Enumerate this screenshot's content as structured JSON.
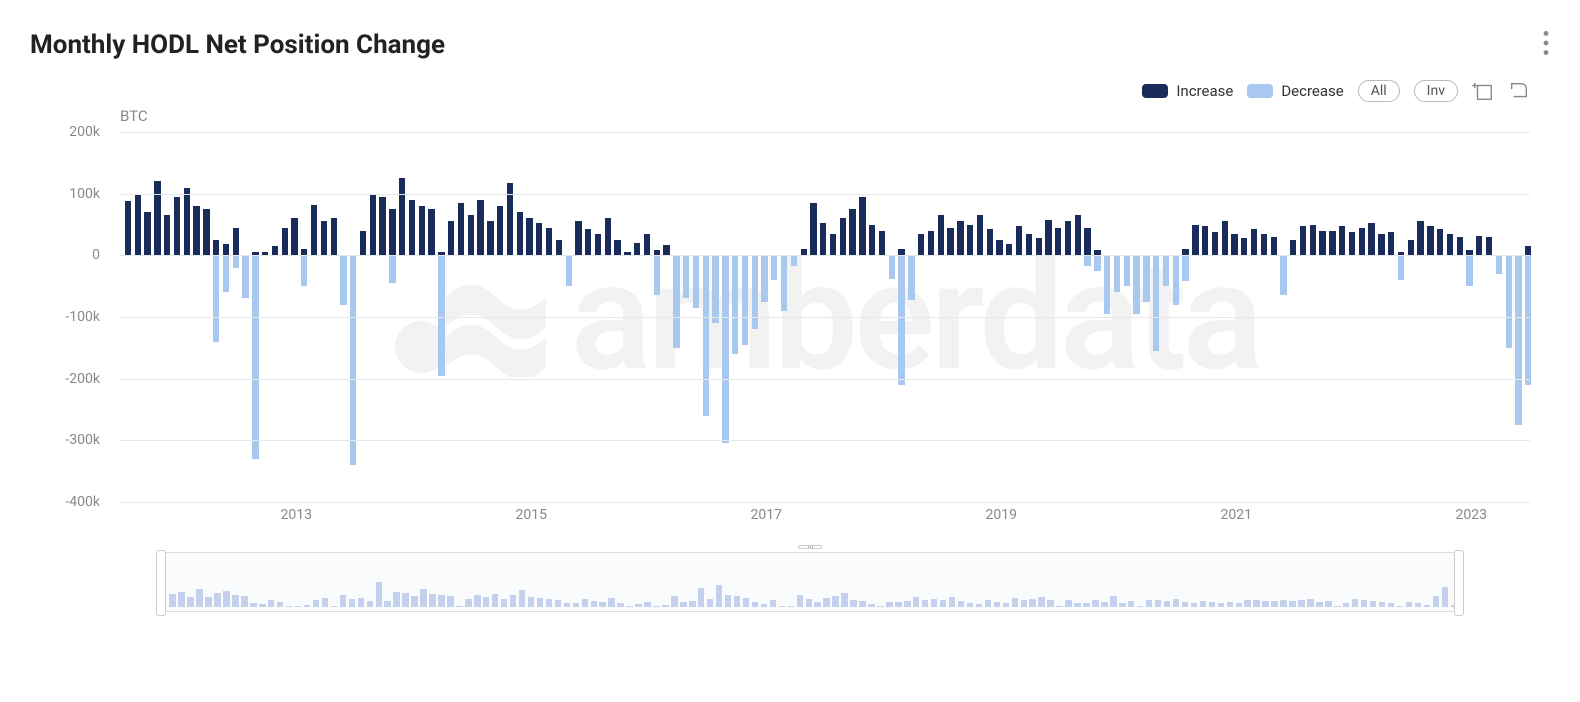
{
  "title": "Monthly HODL Net Position Change",
  "legend": {
    "increase": {
      "label": "Increase",
      "color": "#1a2c5b"
    },
    "decrease": {
      "label": "Decrease",
      "color": "#a8c8ef"
    }
  },
  "controls": {
    "all": "All",
    "inv": "Inv"
  },
  "watermark": "amberdata",
  "chart": {
    "type": "bar",
    "y_unit": "BTC",
    "ylim_min": -400000,
    "ylim_max": 200000,
    "ytick_step": 100000,
    "y_ticks": [
      {
        "v": 200000,
        "label": "200k"
      },
      {
        "v": 100000,
        "label": "100k"
      },
      {
        "v": 0,
        "label": "0"
      },
      {
        "v": -100000,
        "label": "-100k"
      },
      {
        "v": -200000,
        "label": "-200k"
      },
      {
        "v": -300000,
        "label": "-300k"
      },
      {
        "v": -400000,
        "label": "-400k"
      }
    ],
    "x_ticks": [
      "2013",
      "2015",
      "2017",
      "2019",
      "2021",
      "2023"
    ],
    "bar_width_pct": 0.45,
    "grid_color": "#e8e8e8",
    "background_color": "#ffffff",
    "increase_color": "#1a2c5b",
    "decrease_color": "#a8c8ef",
    "data": [
      {
        "i": 88,
        "d": 0
      },
      {
        "i": 100,
        "d": 0
      },
      {
        "i": 70,
        "d": 0
      },
      {
        "i": 120,
        "d": 0
      },
      {
        "i": 65,
        "d": 0
      },
      {
        "i": 95,
        "d": 0
      },
      {
        "i": 110,
        "d": 0
      },
      {
        "i": 80,
        "d": 0
      },
      {
        "i": 75,
        "d": 0
      },
      {
        "i": 25,
        "d": -140
      },
      {
        "i": 18,
        "d": -60
      },
      {
        "i": 45,
        "d": -20
      },
      {
        "i": 0,
        "d": -70
      },
      {
        "i": 5,
        "d": -330
      },
      {
        "i": 5,
        "d": 0
      },
      {
        "i": 15,
        "d": 0
      },
      {
        "i": 45,
        "d": 0
      },
      {
        "i": 60,
        "d": 0
      },
      {
        "i": 10,
        "d": -50
      },
      {
        "i": 82,
        "d": 0
      },
      {
        "i": 55,
        "d": 0
      },
      {
        "i": 60,
        "d": 0
      },
      {
        "i": 0,
        "d": -80
      },
      {
        "i": 0,
        "d": -340
      },
      {
        "i": 40,
        "d": 0
      },
      {
        "i": 100,
        "d": 0
      },
      {
        "i": 95,
        "d": 0
      },
      {
        "i": 75,
        "d": -45
      },
      {
        "i": 125,
        "d": 0
      },
      {
        "i": 90,
        "d": 0
      },
      {
        "i": 80,
        "d": 0
      },
      {
        "i": 75,
        "d": 0
      },
      {
        "i": 5,
        "d": -195
      },
      {
        "i": 55,
        "d": 0
      },
      {
        "i": 85,
        "d": 0
      },
      {
        "i": 65,
        "d": 0
      },
      {
        "i": 90,
        "d": 0
      },
      {
        "i": 55,
        "d": 0
      },
      {
        "i": 80,
        "d": 0
      },
      {
        "i": 118,
        "d": 0
      },
      {
        "i": 70,
        "d": 0
      },
      {
        "i": 60,
        "d": 0
      },
      {
        "i": 52,
        "d": 0
      },
      {
        "i": 45,
        "d": 0
      },
      {
        "i": 25,
        "d": 0
      },
      {
        "i": 0,
        "d": -50
      },
      {
        "i": 55,
        "d": 0
      },
      {
        "i": 42,
        "d": 0
      },
      {
        "i": 35,
        "d": 0
      },
      {
        "i": 60,
        "d": 0
      },
      {
        "i": 25,
        "d": 0
      },
      {
        "i": 5,
        "d": 0
      },
      {
        "i": 20,
        "d": 0
      },
      {
        "i": 35,
        "d": 0
      },
      {
        "i": 8,
        "d": -65
      },
      {
        "i": 16,
        "d": 0
      },
      {
        "i": 0,
        "d": -150
      },
      {
        "i": 0,
        "d": -70
      },
      {
        "i": 0,
        "d": -85
      },
      {
        "i": 0,
        "d": -260
      },
      {
        "i": 0,
        "d": -110
      },
      {
        "i": 0,
        "d": -305
      },
      {
        "i": 0,
        "d": -160
      },
      {
        "i": 0,
        "d": -145
      },
      {
        "i": 0,
        "d": -120
      },
      {
        "i": 0,
        "d": -75
      },
      {
        "i": 0,
        "d": -40
      },
      {
        "i": 0,
        "d": -90
      },
      {
        "i": 0,
        "d": -18
      },
      {
        "i": 10,
        "d": 0
      },
      {
        "i": 85,
        "d": 0
      },
      {
        "i": 52,
        "d": 0
      },
      {
        "i": 35,
        "d": 0
      },
      {
        "i": 60,
        "d": 0
      },
      {
        "i": 75,
        "d": 0
      },
      {
        "i": 95,
        "d": 0
      },
      {
        "i": 50,
        "d": 0
      },
      {
        "i": 40,
        "d": 0
      },
      {
        "i": 0,
        "d": -38
      },
      {
        "i": 10,
        "d": -210
      },
      {
        "i": 0,
        "d": -72
      },
      {
        "i": 35,
        "d": 0
      },
      {
        "i": 40,
        "d": 0
      },
      {
        "i": 65,
        "d": 0
      },
      {
        "i": 45,
        "d": 0
      },
      {
        "i": 55,
        "d": 0
      },
      {
        "i": 50,
        "d": 0
      },
      {
        "i": 65,
        "d": 0
      },
      {
        "i": 42,
        "d": 0
      },
      {
        "i": 25,
        "d": 0
      },
      {
        "i": 18,
        "d": 0
      },
      {
        "i": 48,
        "d": 0
      },
      {
        "i": 35,
        "d": 0
      },
      {
        "i": 28,
        "d": 0
      },
      {
        "i": 58,
        "d": 0
      },
      {
        "i": 45,
        "d": 0
      },
      {
        "i": 55,
        "d": 0
      },
      {
        "i": 65,
        "d": 0
      },
      {
        "i": 45,
        "d": -18
      },
      {
        "i": 8,
        "d": -25
      },
      {
        "i": 0,
        "d": -95
      },
      {
        "i": 0,
        "d": -60
      },
      {
        "i": 0,
        "d": -50
      },
      {
        "i": 0,
        "d": -95
      },
      {
        "i": 0,
        "d": -75
      },
      {
        "i": 0,
        "d": -155
      },
      {
        "i": 0,
        "d": -50
      },
      {
        "i": 0,
        "d": -80
      },
      {
        "i": 10,
        "d": -42
      },
      {
        "i": 50,
        "d": 0
      },
      {
        "i": 48,
        "d": 0
      },
      {
        "i": 38,
        "d": 0
      },
      {
        "i": 55,
        "d": 0
      },
      {
        "i": 35,
        "d": 0
      },
      {
        "i": 28,
        "d": 0
      },
      {
        "i": 42,
        "d": 0
      },
      {
        "i": 35,
        "d": 0
      },
      {
        "i": 30,
        "d": 0
      },
      {
        "i": 0,
        "d": -65
      },
      {
        "i": 25,
        "d": 0
      },
      {
        "i": 48,
        "d": 0
      },
      {
        "i": 50,
        "d": 0
      },
      {
        "i": 40,
        "d": 0
      },
      {
        "i": 40,
        "d": 0
      },
      {
        "i": 48,
        "d": 0
      },
      {
        "i": 38,
        "d": 0
      },
      {
        "i": 45,
        "d": 0
      },
      {
        "i": 52,
        "d": 0
      },
      {
        "i": 35,
        "d": 0
      },
      {
        "i": 38,
        "d": 0
      },
      {
        "i": 5,
        "d": -40
      },
      {
        "i": 25,
        "d": 0
      },
      {
        "i": 55,
        "d": 0
      },
      {
        "i": 48,
        "d": 0
      },
      {
        "i": 42,
        "d": 0
      },
      {
        "i": 35,
        "d": 0
      },
      {
        "i": 30,
        "d": 0
      },
      {
        "i": 8,
        "d": -50
      },
      {
        "i": 32,
        "d": 0
      },
      {
        "i": 30,
        "d": 0
      },
      {
        "i": 0,
        "d": -30
      },
      {
        "i": 0,
        "d": -150
      },
      {
        "i": 0,
        "d": -275
      },
      {
        "i": 15,
        "d": -210
      }
    ]
  }
}
